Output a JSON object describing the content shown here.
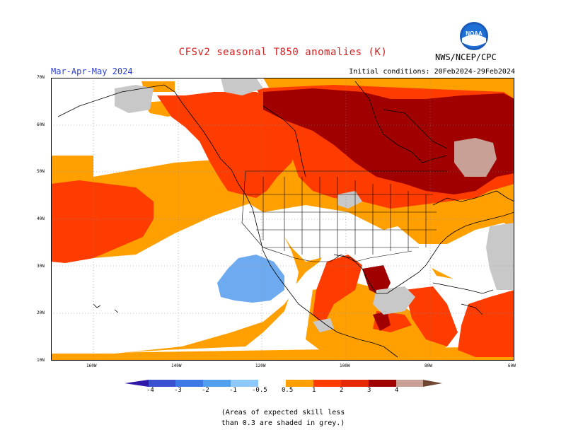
{
  "title": "CFSv2 seasonal T850 anomalies (K)",
  "period": "Mar-Apr-May 2024",
  "initial_conditions": "Initial conditions: 20Feb2024-29Feb2024",
  "agency": "NWS/NCEP/CPC",
  "logo_text": "NOAA",
  "lat_labels": [
    "70N",
    "60N",
    "50N",
    "40N",
    "30N",
    "20N",
    "10N"
  ],
  "lon_labels": [
    "160W",
    "140W",
    "120W",
    "100W",
    "80W",
    "60W"
  ],
  "colorbar": {
    "labels": [
      "-4",
      "-3",
      "-2",
      "-1",
      "-0.5",
      "0.5",
      "1",
      "2",
      "3",
      "4"
    ],
    "colors": [
      "#3218a8",
      "#3c50d2",
      "#3c78e6",
      "#50a0f0",
      "#8cc8fa",
      "#ffffff",
      "#ffa000",
      "#ff3c00",
      "#e62800",
      "#a00000",
      "#c8a096",
      "#6e4632"
    ]
  },
  "legend_categories": {
    "white": "#ffffff",
    "orange": "#ffa000",
    "red_orange": "#ff3c00",
    "red": "#e62800",
    "dark_red": "#a00000",
    "pinkish": "#c8a096",
    "light_blue": "#6eaaf0",
    "grey": "#c8c8c8"
  },
  "note": [
    "(Areas of expected skill less",
    "than 0.3 are shaded in grey.)"
  ]
}
